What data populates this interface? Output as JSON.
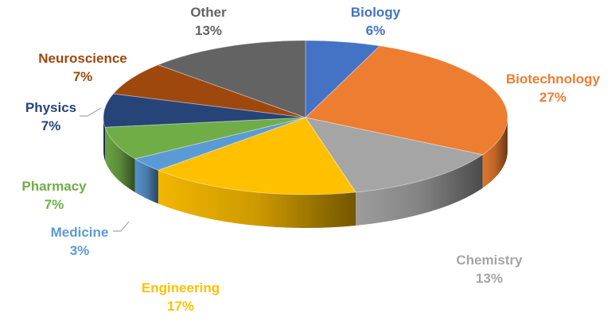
{
  "chart_data": {
    "type": "pie",
    "style": "3d",
    "title": "",
    "legend": "none",
    "data_labels": "outside",
    "slices": [
      {
        "label": "Biology",
        "value": 6,
        "display": "6%",
        "color": "#4472C4"
      },
      {
        "label": "Biotechnology",
        "value": 27,
        "display": "27%",
        "color": "#ED7D31"
      },
      {
        "label": "Chemistry",
        "value": 13,
        "display": "13%",
        "color": "#A5A5A5"
      },
      {
        "label": "Engineering",
        "value": 17,
        "display": "17%",
        "color": "#FFC000"
      },
      {
        "label": "Medicine",
        "value": 3,
        "display": "3%",
        "color": "#5B9BD5"
      },
      {
        "label": "Pharmacy",
        "value": 7,
        "display": "7%",
        "color": "#70AD47"
      },
      {
        "label": "Physics",
        "value": 7,
        "display": "7%",
        "color": "#264478"
      },
      {
        "label": "Neuroscience",
        "value": 7,
        "display": "7%",
        "color": "#9E480E"
      },
      {
        "label": "Other",
        "value": 13,
        "display": "13%",
        "color": "#636363"
      }
    ]
  }
}
